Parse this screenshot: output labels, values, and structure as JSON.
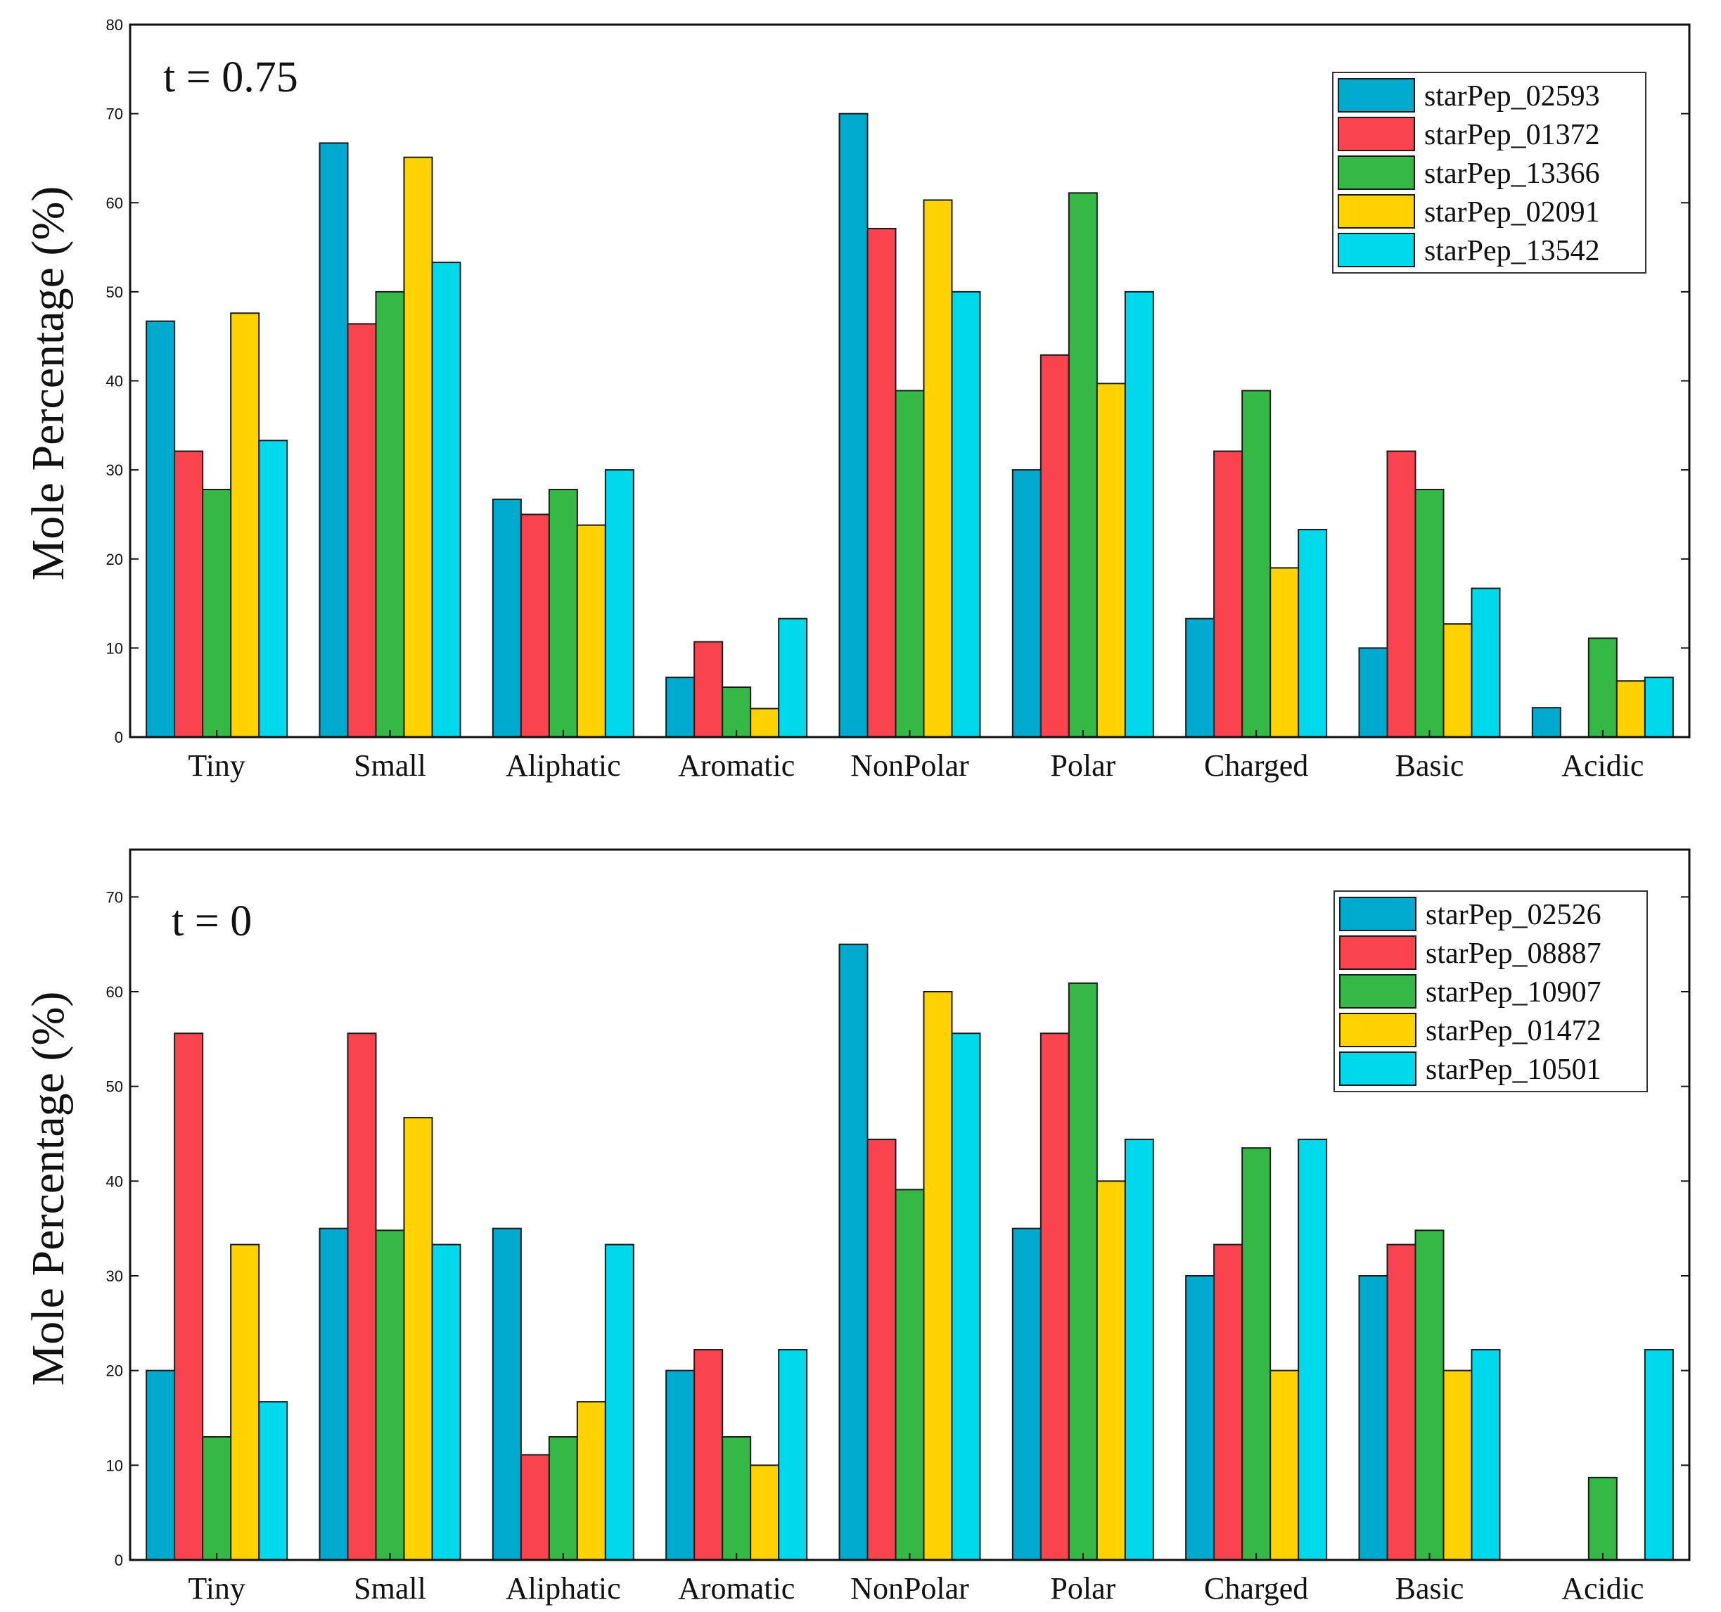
{
  "chart_data": [
    {
      "type": "bar",
      "annotation": "t = 0.75",
      "title": "",
      "xlabel": "",
      "ylabel": "Mole Percentage (%)",
      "ylim": [
        0,
        80
      ],
      "yticks": [
        "0",
        "10",
        "20",
        "30",
        "40",
        "50",
        "60",
        "70",
        "80"
      ],
      "grid": false,
      "legend_position": "top-right",
      "categories": [
        "Tiny",
        "Small",
        "Aliphatic",
        "Aromatic",
        "NonPolar",
        "Polar",
        "Charged",
        "Basic",
        "Acidic"
      ],
      "series": [
        {
          "name": "starPep_02593",
          "color": "#00AACF",
          "values": [
            46.7,
            66.7,
            26.7,
            6.7,
            70.0,
            30.0,
            13.3,
            10.0,
            3.3
          ]
        },
        {
          "name": "starPep_01372",
          "color": "#F94450",
          "values": [
            32.1,
            46.4,
            25.0,
            10.7,
            57.1,
            42.9,
            32.1,
            32.1,
            0
          ]
        },
        {
          "name": "starPep_13366",
          "color": "#36B846",
          "values": [
            27.8,
            50.0,
            27.8,
            5.6,
            38.9,
            61.1,
            38.9,
            27.8,
            11.1
          ]
        },
        {
          "name": "starPep_02091",
          "color": "#FFD200",
          "values": [
            47.6,
            65.1,
            23.8,
            3.2,
            60.3,
            39.7,
            19.0,
            12.7,
            6.3
          ]
        },
        {
          "name": "starPep_13542",
          "color": "#00D8EC",
          "values": [
            33.3,
            53.3,
            30.0,
            13.3,
            50.0,
            50.0,
            23.3,
            16.7,
            6.7
          ]
        }
      ]
    },
    {
      "type": "bar",
      "annotation": "t = 0",
      "title": "",
      "xlabel": "",
      "ylabel": "Mole Percentage (%)",
      "ylim": [
        0,
        75
      ],
      "yticks": [
        "0",
        "10",
        "20",
        "30",
        "40",
        "50",
        "60",
        "70"
      ],
      "grid": false,
      "legend_position": "top-right",
      "categories": [
        "Tiny",
        "Small",
        "Aliphatic",
        "Aromatic",
        "NonPolar",
        "Polar",
        "Charged",
        "Basic",
        "Acidic"
      ],
      "series": [
        {
          "name": "starPep_02526",
          "color": "#00AACF",
          "values": [
            20.0,
            35.0,
            35.0,
            20.0,
            65.0,
            35.0,
            30.0,
            30.0,
            0
          ]
        },
        {
          "name": "starPep_08887",
          "color": "#F94450",
          "values": [
            55.6,
            55.6,
            11.1,
            22.2,
            44.4,
            55.6,
            33.3,
            33.3,
            0
          ]
        },
        {
          "name": "starPep_10907",
          "color": "#36B846",
          "values": [
            13.0,
            34.8,
            13.0,
            13.0,
            39.1,
            60.9,
            43.5,
            34.8,
            8.7
          ]
        },
        {
          "name": "starPep_01472",
          "color": "#FFD200",
          "values": [
            33.3,
            46.7,
            16.7,
            10.0,
            60.0,
            40.0,
            20.0,
            20.0,
            0
          ]
        },
        {
          "name": "starPep_10501",
          "color": "#00D8EC",
          "values": [
            16.7,
            33.3,
            33.3,
            22.2,
            55.6,
            44.4,
            44.4,
            22.2,
            22.2
          ]
        }
      ]
    }
  ]
}
